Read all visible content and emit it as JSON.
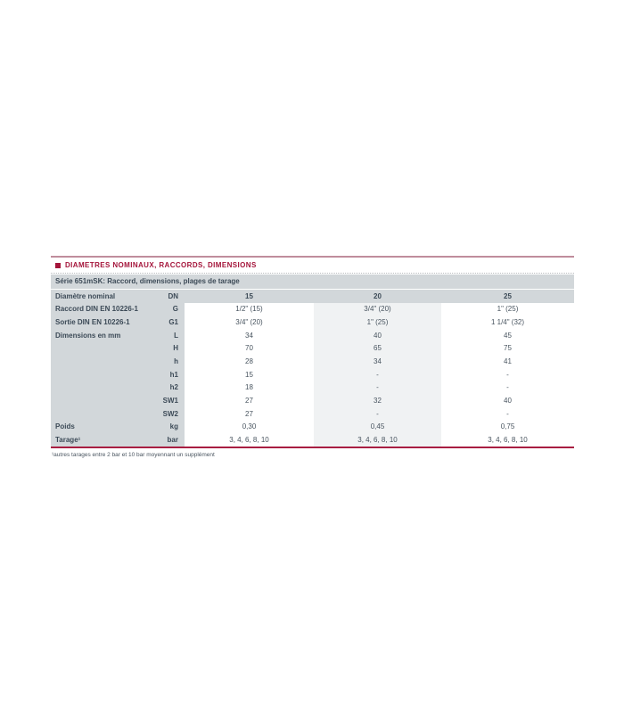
{
  "section": {
    "title": "DIAMETRES NOMINAUX, RACCORDS, DIMENSIONS",
    "footnote": "¹autres tarages entre 2 bar et 10 bar moyennant un supplément"
  },
  "table": {
    "header": "Série 651mSK: Raccord, dimensions, plages de tarage",
    "rows": [
      {
        "label": "Diamètre nominal",
        "unit": "DN",
        "values": [
          "15",
          "20",
          "25"
        ],
        "header": true
      },
      {
        "label": "Raccord DIN EN 10226-1",
        "unit": "G",
        "values": [
          "1/2\" (15)",
          "3/4\" (20)",
          "1\" (25)"
        ]
      },
      {
        "label": "Sortie DIN EN 10226-1",
        "unit": "G1",
        "values": [
          "3/4\" (20)",
          "1\" (25)",
          "1 1/4\" (32)"
        ]
      },
      {
        "label": "Dimensions en mm",
        "unit": "L",
        "values": [
          "34",
          "40",
          "45"
        ]
      },
      {
        "label": "",
        "unit": "H",
        "values": [
          "70",
          "65",
          "75"
        ]
      },
      {
        "label": "",
        "unit": "h",
        "values": [
          "28",
          "34",
          "41"
        ]
      },
      {
        "label": "",
        "unit": "h1",
        "values": [
          "15",
          "-",
          "-"
        ]
      },
      {
        "label": "",
        "unit": "h2",
        "values": [
          "18",
          "-",
          "-"
        ]
      },
      {
        "label": "",
        "unit": "SW1",
        "values": [
          "27",
          "32",
          "40"
        ]
      },
      {
        "label": "",
        "unit": "SW2",
        "values": [
          "27",
          "-",
          "-"
        ]
      },
      {
        "label": "Poids",
        "unit": "kg",
        "values": [
          "0,30",
          "0,45",
          "0,75"
        ]
      },
      {
        "label": "Tarage¹",
        "unit": "bar",
        "values": [
          "3, 4, 6, 8, 10",
          "3, 4, 6, 8, 10",
          "3, 4, 6, 8, 10"
        ]
      }
    ]
  },
  "colors": {
    "accent_red": "#a4143a",
    "rule_top": "#c08d9c",
    "rule_bottom": "#a81e42",
    "header_gray": "#d2d7da",
    "shaded_column": "#f0f2f3",
    "text_dark": "#3c4a57"
  }
}
